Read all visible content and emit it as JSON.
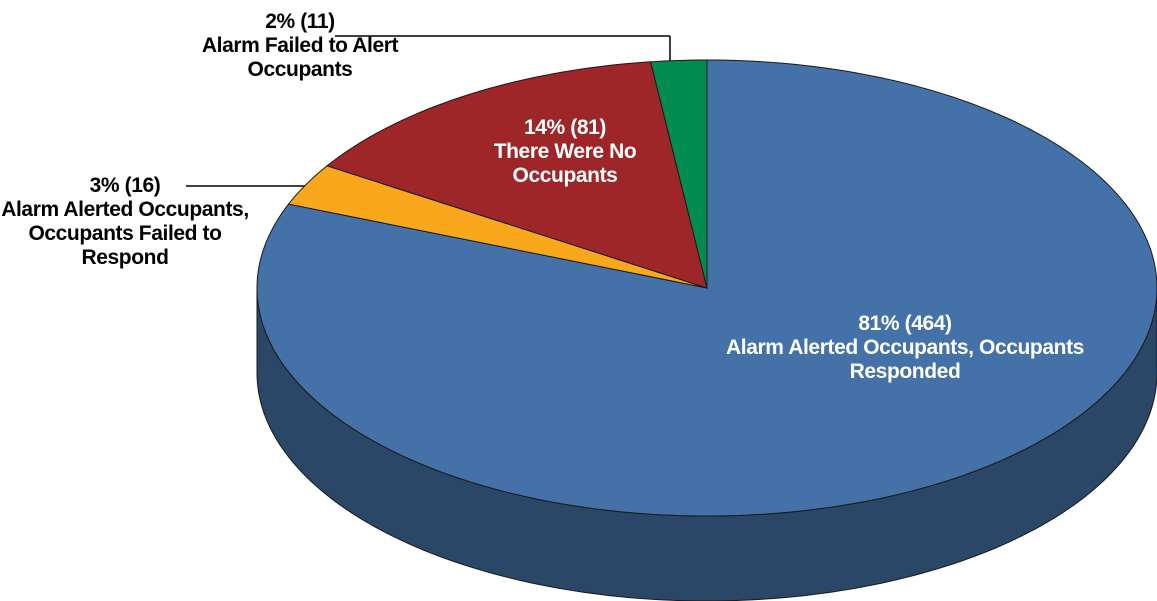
{
  "chart_data": {
    "type": "pie",
    "categories": [
      "Alarm Alerted Occupants, Occupants Responded",
      "Alarm Alerted Occupants, Occupants Failed to Respond",
      "There Were No Occupants",
      "Alarm Failed to Alert Occupants"
    ],
    "values": [
      81,
      3,
      14,
      2
    ],
    "value_labels": [
      "81% (464)",
      "3% (16)",
      "14% (81)",
      "2% (11)"
    ],
    "counts": [
      464,
      16,
      81,
      11
    ],
    "colors": [
      "#4472a8",
      "#f9a81c",
      "#9e2528",
      "#008c50"
    ]
  }
}
